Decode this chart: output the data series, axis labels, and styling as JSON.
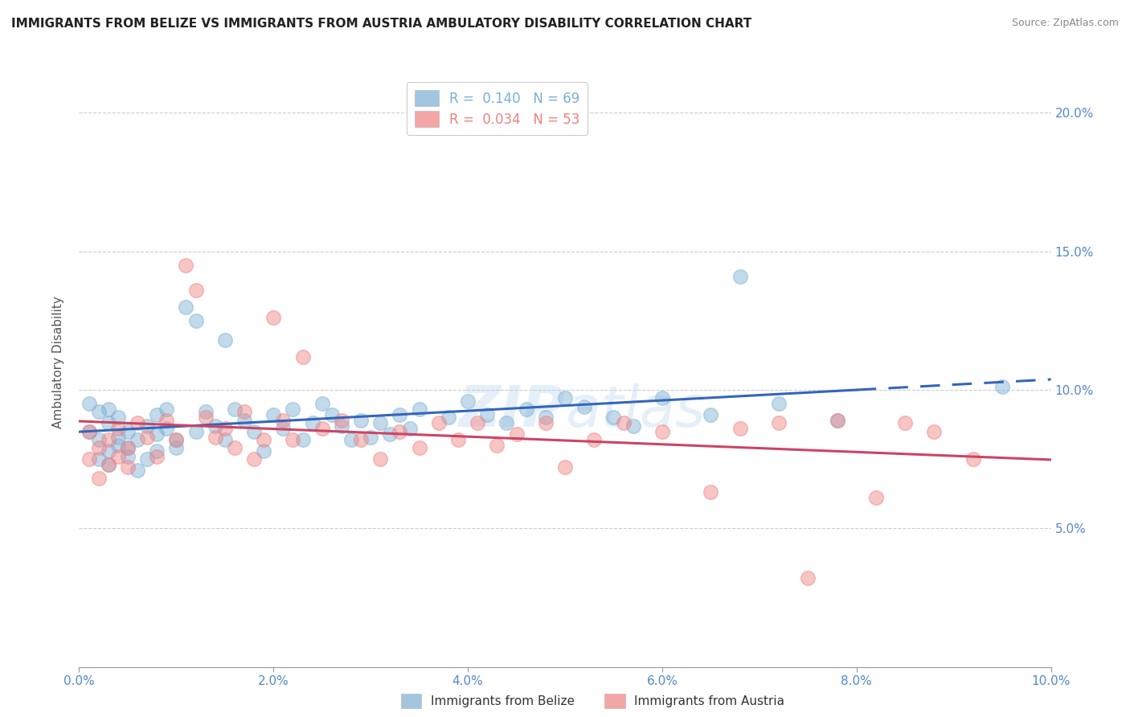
{
  "title": "IMMIGRANTS FROM BELIZE VS IMMIGRANTS FROM AUSTRIA AMBULATORY DISABILITY CORRELATION CHART",
  "source": "Source: ZipAtlas.com",
  "ylabel": "Ambulatory Disability",
  "xlim": [
    0.0,
    0.1
  ],
  "ylim": [
    0.0,
    0.22
  ],
  "xticks": [
    0.0,
    0.02,
    0.04,
    0.06,
    0.08,
    0.1
  ],
  "yticks": [
    0.05,
    0.1,
    0.15,
    0.2
  ],
  "xtick_labels": [
    "0.0%",
    "2.0%",
    "4.0%",
    "6.0%",
    "8.0%",
    "10.0%"
  ],
  "ytick_labels": [
    "5.0%",
    "10.0%",
    "15.0%",
    "20.0%"
  ],
  "color_belize": "#7bafd4",
  "color_austria": "#f08080",
  "belize_x": [
    0.001,
    0.001,
    0.002,
    0.002,
    0.002,
    0.003,
    0.003,
    0.003,
    0.003,
    0.004,
    0.004,
    0.004,
    0.005,
    0.005,
    0.005,
    0.006,
    0.006,
    0.007,
    0.007,
    0.008,
    0.008,
    0.008,
    0.009,
    0.009,
    0.01,
    0.01,
    0.011,
    0.012,
    0.012,
    0.013,
    0.014,
    0.015,
    0.015,
    0.016,
    0.017,
    0.018,
    0.019,
    0.02,
    0.021,
    0.022,
    0.023,
    0.024,
    0.025,
    0.026,
    0.027,
    0.028,
    0.029,
    0.03,
    0.031,
    0.032,
    0.033,
    0.034,
    0.035,
    0.038,
    0.04,
    0.042,
    0.044,
    0.046,
    0.048,
    0.05,
    0.052,
    0.055,
    0.057,
    0.06,
    0.065,
    0.068,
    0.072,
    0.078,
    0.095
  ],
  "belize_y": [
    0.085,
    0.095,
    0.082,
    0.092,
    0.075,
    0.078,
    0.088,
    0.093,
    0.073,
    0.08,
    0.09,
    0.083,
    0.076,
    0.085,
    0.079,
    0.082,
    0.071,
    0.087,
    0.075,
    0.078,
    0.084,
    0.091,
    0.086,
    0.093,
    0.082,
    0.079,
    0.13,
    0.125,
    0.085,
    0.092,
    0.087,
    0.082,
    0.118,
    0.093,
    0.089,
    0.085,
    0.078,
    0.091,
    0.086,
    0.093,
    0.082,
    0.088,
    0.095,
    0.091,
    0.087,
    0.082,
    0.089,
    0.083,
    0.088,
    0.084,
    0.091,
    0.086,
    0.093,
    0.09,
    0.096,
    0.091,
    0.088,
    0.093,
    0.09,
    0.097,
    0.094,
    0.09,
    0.087,
    0.097,
    0.091,
    0.141,
    0.095,
    0.089,
    0.101
  ],
  "austria_x": [
    0.001,
    0.001,
    0.002,
    0.002,
    0.003,
    0.003,
    0.004,
    0.004,
    0.005,
    0.005,
    0.006,
    0.007,
    0.008,
    0.009,
    0.01,
    0.011,
    0.012,
    0.013,
    0.014,
    0.015,
    0.016,
    0.017,
    0.018,
    0.019,
    0.02,
    0.021,
    0.022,
    0.023,
    0.025,
    0.027,
    0.029,
    0.031,
    0.033,
    0.035,
    0.037,
    0.039,
    0.041,
    0.043,
    0.045,
    0.048,
    0.05,
    0.053,
    0.056,
    0.06,
    0.065,
    0.068,
    0.072,
    0.078,
    0.082,
    0.088,
    0.092,
    0.085,
    0.075
  ],
  "austria_y": [
    0.075,
    0.085,
    0.079,
    0.068,
    0.082,
    0.073,
    0.076,
    0.086,
    0.079,
    0.072,
    0.088,
    0.083,
    0.076,
    0.089,
    0.082,
    0.145,
    0.136,
    0.09,
    0.083,
    0.086,
    0.079,
    0.092,
    0.075,
    0.082,
    0.126,
    0.089,
    0.082,
    0.112,
    0.086,
    0.089,
    0.082,
    0.075,
    0.085,
    0.079,
    0.088,
    0.082,
    0.088,
    0.08,
    0.084,
    0.088,
    0.072,
    0.082,
    0.088,
    0.085,
    0.063,
    0.086,
    0.088,
    0.089,
    0.061,
    0.085,
    0.075,
    0.088,
    0.032
  ],
  "grid_color": "#cccccc",
  "title_fontsize": 11,
  "tick_label_color": "#5588cc"
}
